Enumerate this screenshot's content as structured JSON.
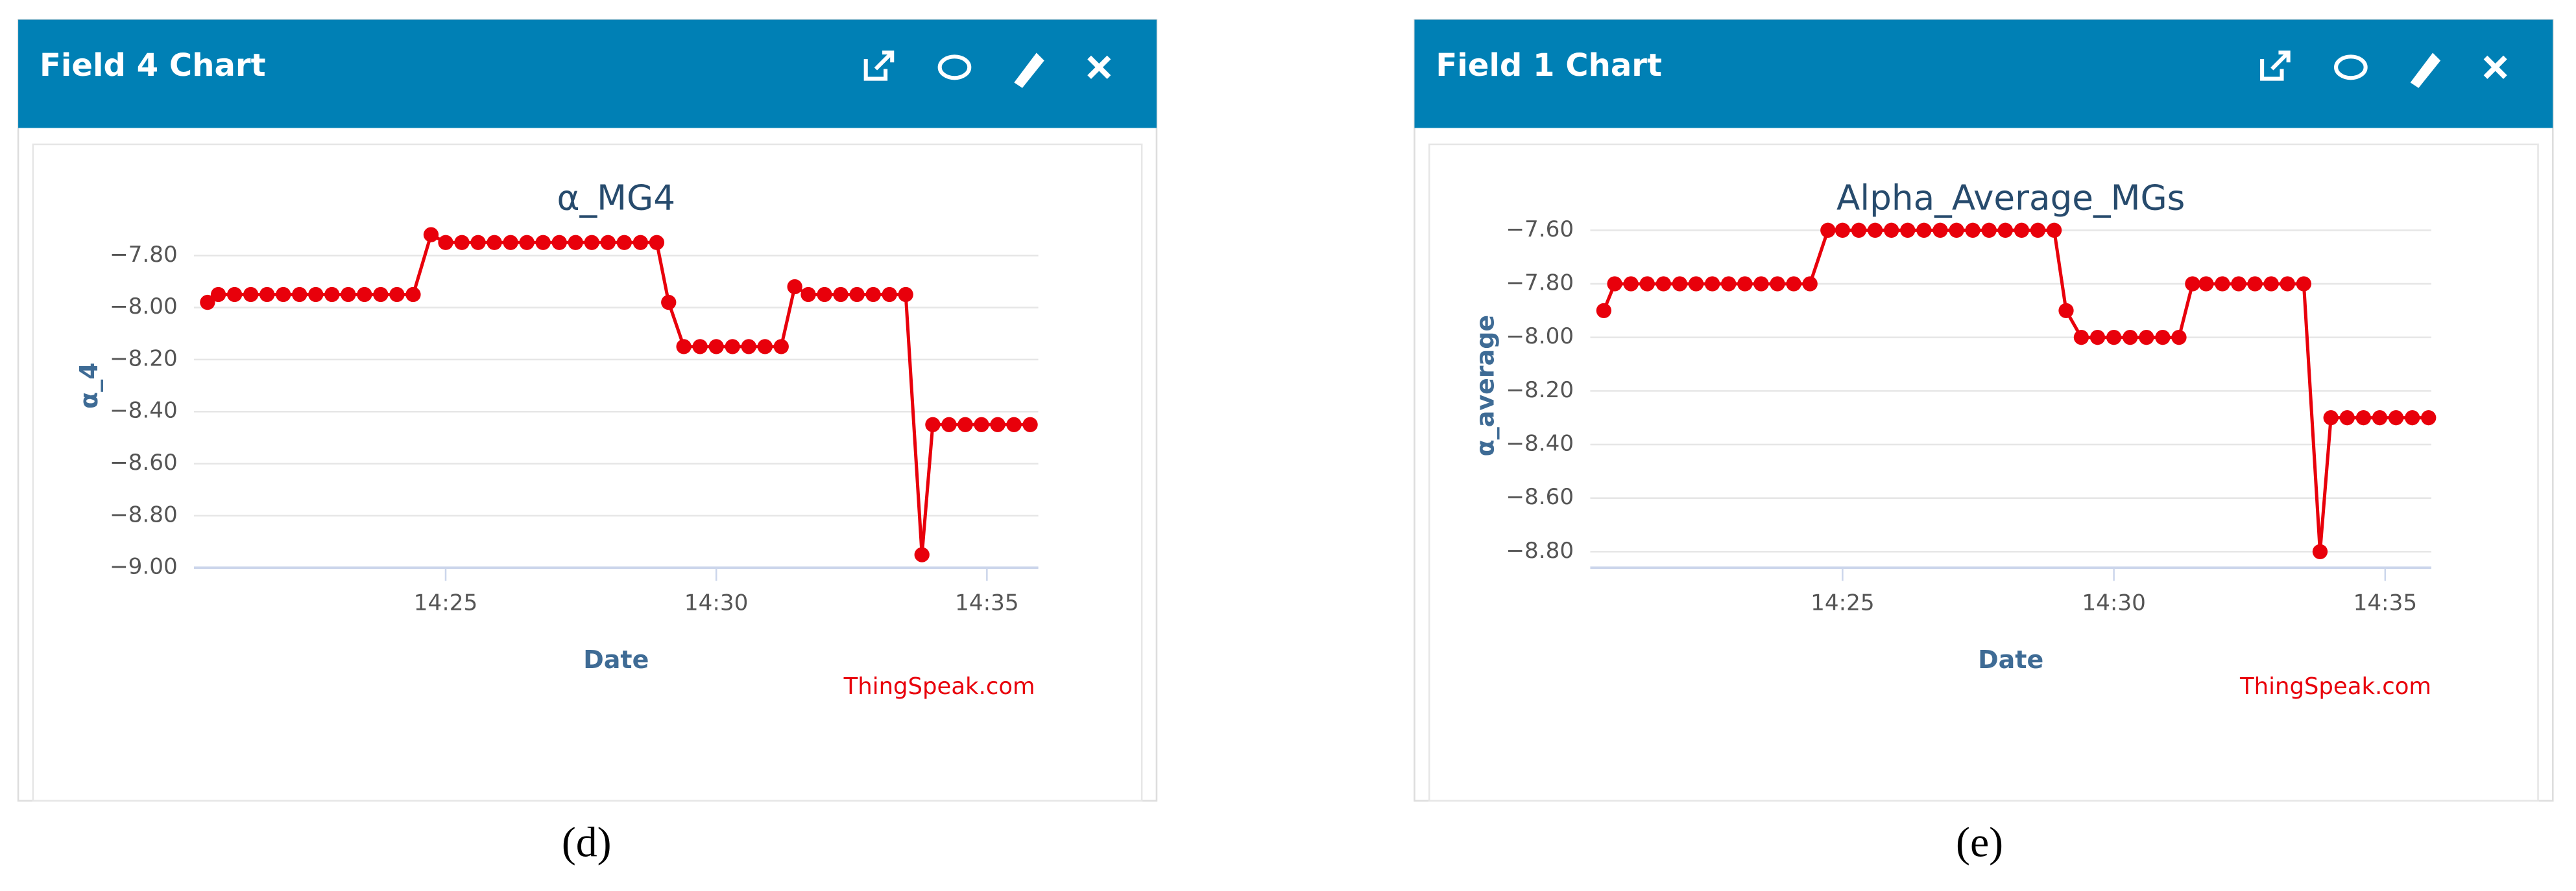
{
  "panels": [
    {
      "title": "Field 4 Chart",
      "credit": "ThingSpeak.com",
      "caption": "(d)"
    },
    {
      "title": "Field 1 Chart",
      "credit": "ThingSpeak.com",
      "caption": "(e)"
    }
  ],
  "chart_data": [
    {
      "type": "line",
      "title": "α_MG4",
      "x_label": "Date",
      "y_label": "α_4",
      "xlim": [
        20.35,
        35.95
      ],
      "xticks": [
        {
          "value": 25,
          "label": "14:25"
        },
        {
          "value": 30,
          "label": "14:30"
        },
        {
          "value": 35,
          "label": "14:35"
        }
      ],
      "ylim": [
        -9.0,
        -7.6
      ],
      "yticks": [
        {
          "value": -9.0,
          "label": "−9.00"
        },
        {
          "value": -8.8,
          "label": "−8.80"
        },
        {
          "value": -8.6,
          "label": "−8.60"
        },
        {
          "value": -8.4,
          "label": "−8.40"
        },
        {
          "value": -8.2,
          "label": "−8.20"
        },
        {
          "value": -8.0,
          "label": "−8.00"
        },
        {
          "value": -7.8,
          "label": "−7.80"
        }
      ],
      "grid": true,
      "x": [
        20.6,
        20.8,
        21.1,
        21.4,
        21.7,
        22.0,
        22.3,
        22.6,
        22.9,
        23.2,
        23.5,
        23.8,
        24.1,
        24.4,
        24.73,
        25.0,
        25.3,
        25.6,
        25.9,
        26.2,
        26.5,
        26.8,
        27.1,
        27.4,
        27.7,
        28.0,
        28.3,
        28.6,
        28.9,
        29.12,
        29.4,
        29.7,
        30.0,
        30.3,
        30.6,
        30.9,
        31.2,
        31.45,
        31.7,
        32.0,
        32.3,
        32.6,
        32.9,
        33.2,
        33.5,
        33.8,
        34.0,
        34.3,
        34.6,
        34.9,
        35.2,
        35.5,
        35.8
      ],
      "series": [
        {
          "name": "α_4",
          "color": "#e8000b",
          "values": [
            -7.98,
            -7.95,
            -7.95,
            -7.95,
            -7.95,
            -7.95,
            -7.95,
            -7.95,
            -7.95,
            -7.95,
            -7.95,
            -7.95,
            -7.95,
            -7.95,
            -7.72,
            -7.75,
            -7.75,
            -7.75,
            -7.75,
            -7.75,
            -7.75,
            -7.75,
            -7.75,
            -7.75,
            -7.75,
            -7.75,
            -7.75,
            -7.75,
            -7.75,
            -7.98,
            -8.15,
            -8.15,
            -8.15,
            -8.15,
            -8.15,
            -8.15,
            -8.15,
            -7.92,
            -7.95,
            -7.95,
            -7.95,
            -7.95,
            -7.95,
            -7.95,
            -7.95,
            -8.95,
            -8.45,
            -8.45,
            -8.45,
            -8.45,
            -8.45,
            -8.45,
            -8.45
          ]
        }
      ]
    },
    {
      "type": "line",
      "title": "Alpha_Average_MGs",
      "x_label": "Date",
      "y_label": "α_average",
      "xlim": [
        20.35,
        35.85
      ],
      "xticks": [
        {
          "value": 25,
          "label": "14:25"
        },
        {
          "value": 30,
          "label": "14:30"
        },
        {
          "value": 35,
          "label": "14:35"
        }
      ],
      "ylim": [
        -8.86,
        -7.5
      ],
      "yticks": [
        {
          "value": -8.8,
          "label": "−8.80"
        },
        {
          "value": -8.6,
          "label": "−8.60"
        },
        {
          "value": -8.4,
          "label": "−8.40"
        },
        {
          "value": -8.2,
          "label": "−8.20"
        },
        {
          "value": -8.0,
          "label": "−8.00"
        },
        {
          "value": -7.8,
          "label": "−7.80"
        },
        {
          "value": -7.6,
          "label": "−7.60"
        }
      ],
      "grid": true,
      "x": [
        20.6,
        20.8,
        21.1,
        21.4,
        21.7,
        22.0,
        22.3,
        22.6,
        22.9,
        23.2,
        23.5,
        23.8,
        24.1,
        24.4,
        24.73,
        25.0,
        25.3,
        25.6,
        25.9,
        26.2,
        26.5,
        26.8,
        27.1,
        27.4,
        27.7,
        28.0,
        28.3,
        28.6,
        28.9,
        29.12,
        29.4,
        29.7,
        30.0,
        30.3,
        30.6,
        30.9,
        31.2,
        31.45,
        31.7,
        32.0,
        32.3,
        32.6,
        32.9,
        33.2,
        33.5,
        33.8,
        34.0,
        34.3,
        34.6,
        34.9,
        35.2,
        35.5,
        35.8
      ],
      "series": [
        {
          "name": "α_average",
          "color": "#e8000b",
          "values": [
            -7.9,
            -7.8,
            -7.8,
            -7.8,
            -7.8,
            -7.8,
            -7.8,
            -7.8,
            -7.8,
            -7.8,
            -7.8,
            -7.8,
            -7.8,
            -7.8,
            -7.6,
            -7.6,
            -7.6,
            -7.6,
            -7.6,
            -7.6,
            -7.6,
            -7.6,
            -7.6,
            -7.6,
            -7.6,
            -7.6,
            -7.6,
            -7.6,
            -7.6,
            -7.9,
            -8.0,
            -8.0,
            -8.0,
            -8.0,
            -8.0,
            -8.0,
            -8.0,
            -7.8,
            -7.8,
            -7.8,
            -7.8,
            -7.8,
            -7.8,
            -7.8,
            -7.8,
            -8.8,
            -8.3,
            -8.3,
            -8.3,
            -8.3,
            -8.3,
            -8.3,
            -8.3
          ]
        }
      ]
    }
  ]
}
